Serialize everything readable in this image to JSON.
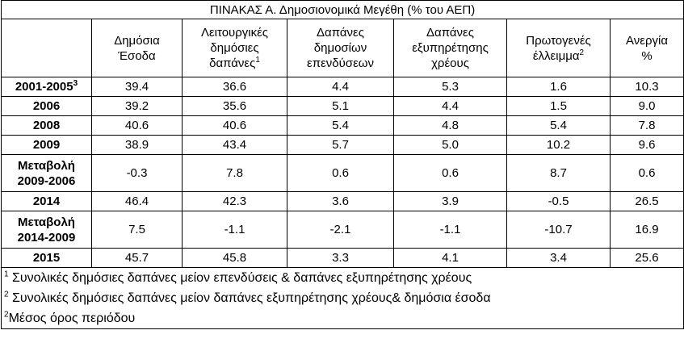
{
  "title": "ΠΙΝΑΚΑΣ Α. Δημοσιονομικά Μεγέθη (% του ΑΕΠ)",
  "table": {
    "columns": [
      {
        "lines": [
          "Δημόσια",
          "Έσοδα"
        ]
      },
      {
        "lines": [
          "Λειτουργικές",
          "δημόσιες",
          "δαπάνες"
        ],
        "sup": "1"
      },
      {
        "lines": [
          "Δαπάνες",
          "δημοσίων",
          "επενδύσεων"
        ]
      },
      {
        "lines": [
          "Δαπάνες",
          "εξυπηρέτησης",
          "χρέους"
        ]
      },
      {
        "lines": [
          "Πρωτογενές",
          "έλλειμμα"
        ],
        "sup": "2"
      },
      {
        "lines": [
          "Ανεργία",
          "%"
        ]
      }
    ],
    "rows": [
      {
        "label": [
          "2001-2005"
        ],
        "sup": "3",
        "cells": [
          "39.4",
          "36.6",
          "4.4",
          "5.3",
          "1.6",
          "10.3"
        ]
      },
      {
        "label": [
          "2006"
        ],
        "cells": [
          "39.2",
          "35.6",
          "5.1",
          "4.4",
          "1.5",
          "9.0"
        ]
      },
      {
        "label": [
          "2008"
        ],
        "cells": [
          "40.6",
          "40.6",
          "5.4",
          "4.8",
          "5.4",
          "7.8"
        ]
      },
      {
        "label": [
          "2009"
        ],
        "cells": [
          "38.9",
          "43.4",
          "5.7",
          "5.0",
          "10.2",
          "9.6"
        ]
      },
      {
        "label": [
          "Μεταβολή",
          "2009-2006"
        ],
        "cells": [
          "-0.3",
          "7.8",
          "0.6",
          "0.6",
          "8.7",
          "0.6"
        ]
      },
      {
        "label": [
          "2014"
        ],
        "cells": [
          "46.4",
          "42.3",
          "3.6",
          "3.9",
          "-0.5",
          "26.5"
        ]
      },
      {
        "label": [
          "Μεταβολή",
          "2014-2009"
        ],
        "cells": [
          "7.5",
          "-1.1",
          "-2.1",
          "-1.1",
          "-10.7",
          "16.9"
        ]
      },
      {
        "label": [
          "2015"
        ],
        "cells": [
          "45.7",
          "45.8",
          "3.3",
          "4.1",
          "3.4",
          "25.6"
        ]
      }
    ]
  },
  "footnotes": [
    {
      "sup": "1",
      "text": " Συνολικές δημόσιες δαπάνες μείον επενδύσεις & δαπάνες εξυπηρέτησης χρέους"
    },
    {
      "sup": "2",
      "text": " Συνολικές δημόσιες δαπάνες μείον δαπάνες εξυπηρέτησης χρέους& δημόσια έσοδα"
    },
    {
      "sup": "2",
      "text": "Μέσος όρος περιόδου"
    }
  ]
}
